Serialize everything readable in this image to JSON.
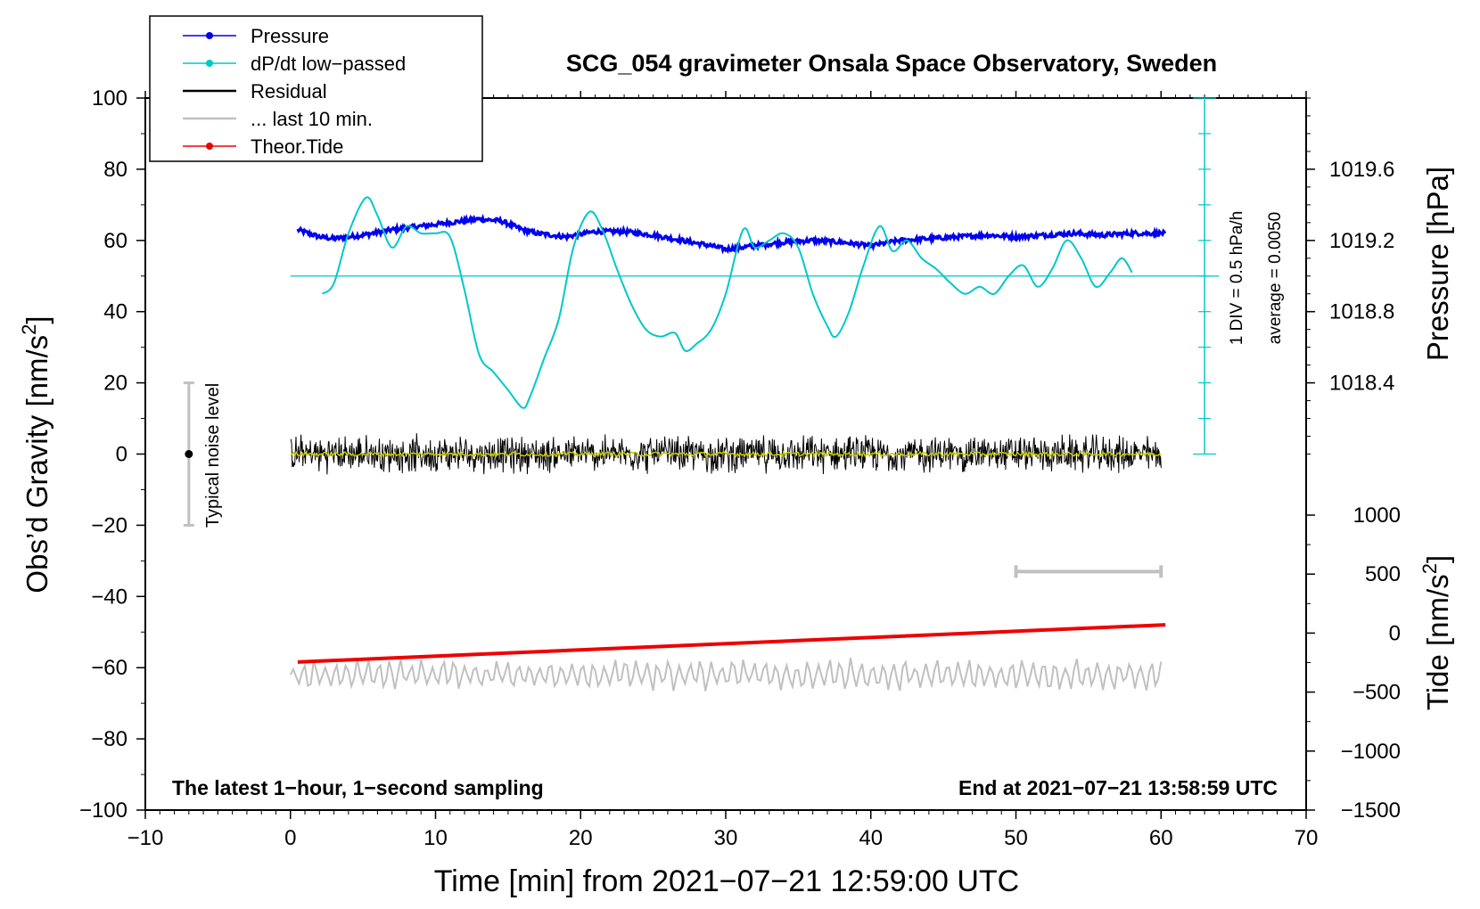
{
  "chart_data": {
    "type": "line",
    "title": "SCG_054 gravimeter Onsala Space Observatory, Sweden",
    "xlabel": "Time [min] from 2021−07−21 12:59:00 UTC",
    "ylabel_left": "Obs’d Gravity [nm/s",
    "ylabel_left_sup": "2",
    "ylabel_left_end": "]",
    "ylabel_right_pressure": "Pressure [hPa]",
    "ylabel_right_tide": "Tide [nm/s",
    "ylabel_right_tide_sup": "2",
    "ylabel_right_tide_end": "]",
    "xlim": [
      -10,
      70
    ],
    "ylim": [
      -100,
      100
    ],
    "x_ticks": [
      "−10",
      "0",
      "10",
      "20",
      "30",
      "40",
      "50",
      "60",
      "70"
    ],
    "x_tick_values": [
      -10,
      0,
      10,
      20,
      30,
      40,
      50,
      60,
      70
    ],
    "y_ticks": [
      "100",
      "80",
      "60",
      "40",
      "20",
      "0",
      "−20",
      "−40",
      "−60",
      "−80",
      "−100"
    ],
    "y_tick_values": [
      100,
      80,
      60,
      40,
      20,
      0,
      -20,
      -40,
      -60,
      -80,
      -100
    ],
    "pressure_axis": {
      "ticks": [
        "1019.6",
        "1019.2",
        "1018.8",
        "1018.4"
      ],
      "tick_values": [
        1019.6,
        1019.2,
        1018.8,
        1018.4
      ],
      "range_hpa": [
        1018.0,
        1020.0
      ]
    },
    "tide_axis": {
      "ticks": [
        "1000",
        "500",
        "0",
        "−500",
        "−1000",
        "−1500"
      ],
      "tick_values": [
        1000,
        500,
        0,
        -500,
        -1000,
        -1500
      ],
      "range": [
        -1500,
        1000
      ]
    },
    "legend": [
      {
        "label": "Pressure",
        "color": "#0000ee",
        "marker": true
      },
      {
        "label": "dP/dt low−passed",
        "color": "#00c8c8",
        "marker": true
      },
      {
        "label": "Residual",
        "color": "#000000",
        "marker": false
      },
      {
        "label": "... last 10 min.",
        "color": "#c0c0c0",
        "marker": false
      },
      {
        "label": "Theor.Tide",
        "color": "#ee0000",
        "marker": true
      }
    ],
    "dpdt_scale_label": "1 DIV = 0.5 hPa/h",
    "dpdt_average_label": "average = 0.0050",
    "noise_label": "Typical noise level",
    "noise_bar": {
      "x": -7,
      "y_center": 0,
      "y_min": -20,
      "y_max": 20
    },
    "last10_bar": {
      "x_start": 50,
      "x_end": 60,
      "y": -33
    },
    "footer_left": "The latest 1−hour, 1−second sampling",
    "footer_right": "End at 2021−07−21 13:58:59 UTC",
    "series": [
      {
        "name": "Pressure",
        "color": "#0000ee",
        "axis": "pressure",
        "x": [
          0.5,
          2,
          3,
          5,
          7,
          9,
          11,
          13,
          14.5,
          16,
          17,
          19,
          21,
          23,
          25,
          27,
          29,
          30,
          32,
          34,
          36,
          38,
          40,
          42,
          44,
          46,
          48,
          50,
          52,
          54,
          56,
          58,
          60.3
        ],
        "values": [
          1019.26,
          1019.22,
          1019.21,
          1019.23,
          1019.26,
          1019.28,
          1019.3,
          1019.32,
          1019.31,
          1019.26,
          1019.24,
          1019.22,
          1019.25,
          1019.25,
          1019.23,
          1019.2,
          1019.17,
          1019.15,
          1019.17,
          1019.19,
          1019.2,
          1019.19,
          1019.17,
          1019.2,
          1019.21,
          1019.22,
          1019.23,
          1019.22,
          1019.23,
          1019.24,
          1019.23,
          1019.24,
          1019.24
        ]
      },
      {
        "name": "dP/dt low-passed",
        "color": "#00c8c8",
        "axis": "gravity_scaled",
        "x": [
          2.2,
          3.0,
          4.0,
          5.2,
          6.0,
          7.0,
          8.0,
          9.0,
          10.0,
          11.0,
          12.0,
          13.0,
          14.0,
          15.0,
          16.0,
          16.5,
          17.5,
          18.5,
          19.5,
          20.6,
          21.5,
          22.5,
          23.5,
          24.5,
          25.5,
          26.5,
          27.2,
          28.0,
          29.0,
          30.0,
          31.2,
          32.0,
          33.0,
          34.0,
          35.0,
          36.0,
          37.0,
          37.6,
          38.5,
          39.5,
          40.6,
          41.5,
          42.5,
          43.5,
          44.5,
          45.5,
          46.5,
          47.5,
          48.5,
          49.5,
          50.5,
          51.5,
          52.5,
          53.5,
          54.5,
          55.5,
          56.5,
          57.3,
          58.0
        ],
        "values": [
          45,
          48,
          62,
          72,
          67,
          58,
          64,
          62,
          62,
          61,
          46,
          28,
          23,
          18,
          13,
          16,
          27,
          38,
          58,
          68,
          63,
          52,
          42,
          35,
          33,
          34,
          29,
          31,
          35,
          45,
          63,
          58,
          60,
          62,
          58,
          45,
          36,
          33,
          40,
          53,
          64,
          57,
          60,
          55,
          52,
          48,
          45,
          47,
          45,
          50,
          53,
          47,
          52,
          60,
          55,
          47,
          51,
          55,
          51
        ]
      },
      {
        "name": "Residual",
        "color": "#000000",
        "axis": "gravity",
        "x": [
          0,
          60
        ],
        "values": [
          0,
          0
        ],
        "noise_amplitude": 6
      },
      {
        "name": "Residual low-passed",
        "color": "#c8c800",
        "axis": "gravity",
        "x": [
          0,
          60
        ],
        "values": [
          0,
          0
        ]
      },
      {
        "name": "... last 10 min.",
        "color": "#c0c0c0",
        "axis": "gravity",
        "x": [
          0,
          60
        ],
        "values": [
          -62,
          -62
        ],
        "noise_amplitude": 5
      },
      {
        "name": "Theor.Tide",
        "color": "#ee0000",
        "axis": "tide",
        "x": [
          0.5,
          60.3
        ],
        "values": [
          -245,
          70
        ]
      }
    ]
  }
}
